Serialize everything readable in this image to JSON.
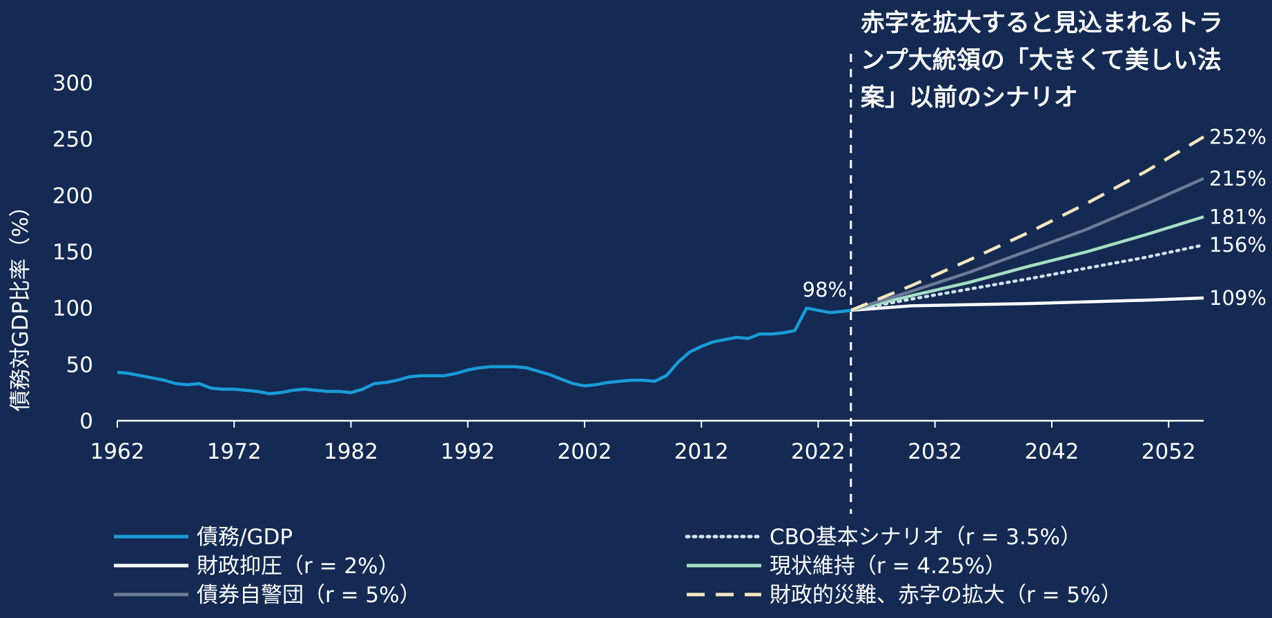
{
  "chart_data": {
    "type": "line",
    "ylabel": "債務対GDP比率（%）",
    "xlabel": "",
    "ylim": [
      0,
      300
    ],
    "xlim": [
      1962,
      2055
    ],
    "y_ticks": [
      0,
      50,
      100,
      150,
      200,
      250,
      300
    ],
    "x_ticks": [
      1962,
      1972,
      1982,
      1992,
      2002,
      2012,
      2022,
      2032,
      2042,
      2052
    ],
    "grid": false,
    "legend_position": "bottom",
    "annotation": {
      "lines": [
        "赤字を拡大すると見込まれるトラ",
        "ンプ大統領の「大きくて美しい法",
        "案」以前のシナリオ"
      ],
      "x": 2024.8
    },
    "start_label": "98%",
    "series": [
      {
        "name": "債務/GDP",
        "color": "#1a9bd7",
        "style": "solid",
        "end_label": "",
        "x": [
          1962,
          1963,
          1964,
          1965,
          1966,
          1967,
          1968,
          1969,
          1970,
          1971,
          1972,
          1973,
          1974,
          1975,
          1976,
          1977,
          1978,
          1979,
          1980,
          1981,
          1982,
          1983,
          1984,
          1985,
          1986,
          1987,
          1988,
          1989,
          1990,
          1991,
          1992,
          1993,
          1994,
          1995,
          1996,
          1997,
          1998,
          1999,
          2000,
          2001,
          2002,
          2003,
          2004,
          2005,
          2006,
          2007,
          2008,
          2009,
          2010,
          2011,
          2012,
          2013,
          2014,
          2015,
          2016,
          2017,
          2018,
          2019,
          2020,
          2021,
          2022,
          2023,
          2024,
          2024.8
        ],
        "values": [
          43,
          42,
          40,
          38,
          36,
          33,
          32,
          33,
          29,
          28,
          28,
          27,
          26,
          24,
          25,
          27,
          28,
          27,
          26,
          26,
          25,
          28,
          33,
          34,
          36,
          39,
          40,
          40,
          40,
          42,
          45,
          47,
          48,
          48,
          48,
          47,
          44,
          41,
          37,
          33,
          31,
          32,
          34,
          35,
          36,
          36,
          35,
          40,
          52,
          61,
          66,
          70,
          72,
          74,
          73,
          77,
          77,
          78,
          80,
          100,
          98,
          96,
          97,
          98
        ]
      },
      {
        "name": "財政抑圧（r = 2%）",
        "color": "#ffffff",
        "style": "solid",
        "end_label": "109%",
        "x": [
          2024.8,
          2030,
          2040,
          2050,
          2055
        ],
        "values": [
          98,
          102,
          104,
          107,
          109
        ]
      },
      {
        "name": "債券自警団（r = 5%）",
        "color": "#6b7b96",
        "style": "solid",
        "end_label": "215%",
        "x": [
          2024.8,
          2030,
          2035,
          2040,
          2045,
          2050,
          2055
        ],
        "values": [
          98,
          115,
          132,
          151,
          170,
          192,
          215
        ]
      },
      {
        "name": "CBO基本シナリオ（r = 3.5%）",
        "color": "#cfe6f0",
        "style": "dotted",
        "end_label": "156%",
        "x": [
          2024.8,
          2030,
          2040,
          2050,
          2055
        ],
        "values": [
          98,
          108,
          126,
          145,
          156
        ]
      },
      {
        "name": "現状維持（r = 4.25%）",
        "color": "#a5dec4",
        "style": "solid",
        "end_label": "181%",
        "x": [
          2024.8,
          2030,
          2035,
          2040,
          2045,
          2050,
          2055
        ],
        "values": [
          98,
          111,
          123,
          137,
          150,
          165,
          181
        ]
      },
      {
        "name": "財政的災難、赤字の拡大（r = 5%）",
        "color": "#f7e7c0",
        "style": "dashed",
        "end_label": "252%",
        "x": [
          2024.8,
          2030,
          2035,
          2040,
          2045,
          2050,
          2055
        ],
        "values": [
          98,
          120,
          143,
          167,
          193,
          221,
          252
        ]
      }
    ]
  }
}
